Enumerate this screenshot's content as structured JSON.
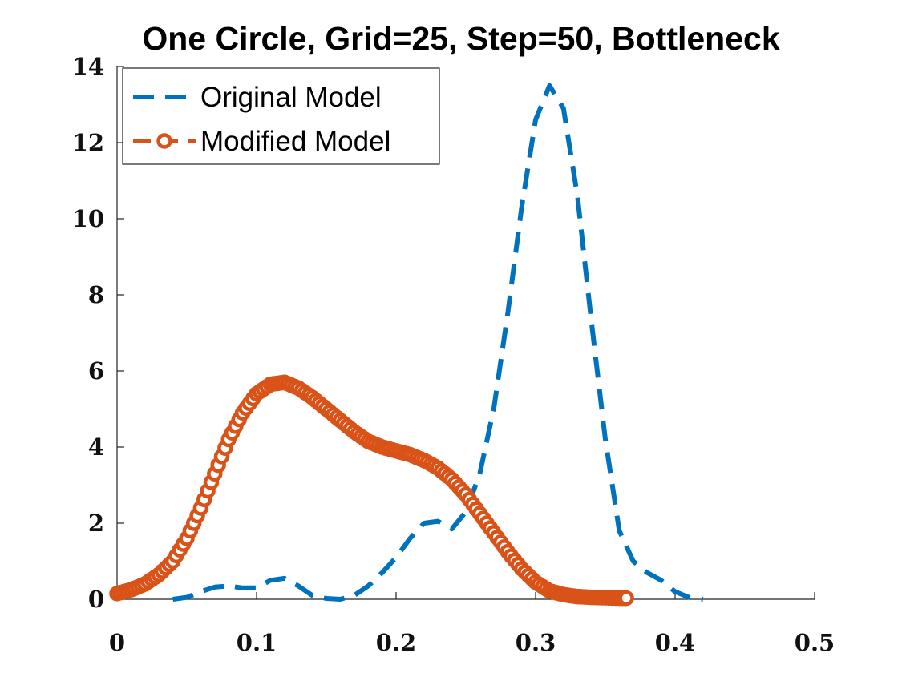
{
  "chart_data": {
    "type": "line",
    "title": "One Circle, Grid=25, Step=50, Bottleneck",
    "xlabel": "",
    "ylabel": "",
    "xlim": [
      0,
      0.5
    ],
    "ylim": [
      0,
      14
    ],
    "x_ticks": [
      "0",
      "0.1",
      "0.2",
      "0.3",
      "0.4",
      "0.5"
    ],
    "y_ticks": [
      "0",
      "2",
      "4",
      "6",
      "8",
      "10",
      "12",
      "14"
    ],
    "grid": false,
    "legend_position": "top-left",
    "series": [
      {
        "name": "Original Model",
        "color": "#0072BD",
        "style": "dashed",
        "marker": "none",
        "points": [
          [
            0.04,
            0.0
          ],
          [
            0.05,
            0.05
          ],
          [
            0.06,
            0.2
          ],
          [
            0.07,
            0.32
          ],
          [
            0.08,
            0.35
          ],
          [
            0.09,
            0.3
          ],
          [
            0.1,
            0.3
          ],
          [
            0.11,
            0.5
          ],
          [
            0.12,
            0.55
          ],
          [
            0.13,
            0.35
          ],
          [
            0.14,
            0.1
          ],
          [
            0.15,
            0.02
          ],
          [
            0.16,
            0.0
          ],
          [
            0.17,
            0.1
          ],
          [
            0.18,
            0.35
          ],
          [
            0.19,
            0.7
          ],
          [
            0.2,
            1.1
          ],
          [
            0.21,
            1.6
          ],
          [
            0.22,
            2.0
          ],
          [
            0.23,
            2.05
          ],
          [
            0.24,
            1.85
          ],
          [
            0.25,
            2.3
          ],
          [
            0.26,
            3.3
          ],
          [
            0.27,
            5.0
          ],
          [
            0.28,
            7.5
          ],
          [
            0.29,
            10.3
          ],
          [
            0.3,
            12.6
          ],
          [
            0.31,
            13.5
          ],
          [
            0.32,
            12.9
          ],
          [
            0.33,
            10.6
          ],
          [
            0.34,
            7.3
          ],
          [
            0.35,
            4.2
          ],
          [
            0.36,
            1.8
          ],
          [
            0.37,
            1.0
          ],
          [
            0.38,
            0.7
          ],
          [
            0.39,
            0.5
          ],
          [
            0.4,
            0.2
          ],
          [
            0.41,
            0.05
          ],
          [
            0.42,
            0.0
          ]
        ]
      },
      {
        "name": "Modified Model",
        "color": "#D95319",
        "style": "dashed",
        "marker": "circle",
        "points": [
          [
            0.0,
            0.15
          ],
          [
            0.01,
            0.25
          ],
          [
            0.02,
            0.4
          ],
          [
            0.03,
            0.65
          ],
          [
            0.04,
            1.0
          ],
          [
            0.05,
            1.6
          ],
          [
            0.06,
            2.4
          ],
          [
            0.07,
            3.3
          ],
          [
            0.08,
            4.2
          ],
          [
            0.09,
            4.9
          ],
          [
            0.1,
            5.4
          ],
          [
            0.11,
            5.65
          ],
          [
            0.12,
            5.7
          ],
          [
            0.13,
            5.55
          ],
          [
            0.14,
            5.3
          ],
          [
            0.15,
            5.0
          ],
          [
            0.16,
            4.7
          ],
          [
            0.17,
            4.4
          ],
          [
            0.18,
            4.15
          ],
          [
            0.19,
            4.0
          ],
          [
            0.2,
            3.9
          ],
          [
            0.21,
            3.8
          ],
          [
            0.22,
            3.65
          ],
          [
            0.23,
            3.45
          ],
          [
            0.24,
            3.15
          ],
          [
            0.25,
            2.75
          ],
          [
            0.26,
            2.25
          ],
          [
            0.27,
            1.75
          ],
          [
            0.28,
            1.25
          ],
          [
            0.29,
            0.8
          ],
          [
            0.3,
            0.45
          ],
          [
            0.31,
            0.22
          ],
          [
            0.32,
            0.12
          ],
          [
            0.33,
            0.07
          ],
          [
            0.34,
            0.05
          ],
          [
            0.35,
            0.04
          ],
          [
            0.36,
            0.03
          ],
          [
            0.365,
            0.03
          ]
        ]
      }
    ]
  }
}
